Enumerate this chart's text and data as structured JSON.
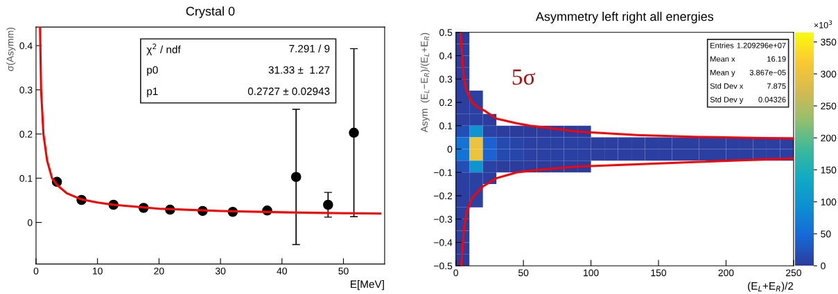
{
  "chart_data": [
    {
      "type": "scatter",
      "title": "Crystal 0",
      "xlabel": "E[MeV]",
      "ylabel": "σ(Asymm)",
      "xlim": [
        0,
        56.7
      ],
      "xticks": [
        0,
        10,
        20,
        30,
        40,
        50
      ],
      "ylim": [
        -0.094,
        0.442
      ],
      "yticks": [
        0,
        0.1,
        0.2,
        0.3,
        0.4
      ],
      "grid": false,
      "series": [
        {
          "type": "scatter",
          "color": "#000000",
          "marker": "circle",
          "x": [
            3.4,
            7.4,
            12.6,
            17.5,
            21.8,
            27.1,
            32.0,
            37.6,
            42.3,
            47.5,
            51.7
          ],
          "values": [
            0.092,
            0.051,
            0.04,
            0.033,
            0.029,
            0.026,
            0.024,
            0.027,
            0.103,
            0.04,
            0.203
          ],
          "errors": [
            null,
            null,
            null,
            null,
            null,
            null,
            null,
            null,
            0.153,
            0.028,
            0.19
          ]
        },
        {
          "type": "line",
          "color": "#ff0000",
          "line_style": "solid",
          "x": [
            0.65,
            0.82,
            1.2,
            1.8,
            2.6,
            3.4,
            5,
            7.4,
            10,
            12.6,
            20,
            30,
            40,
            50,
            56
          ],
          "values": [
            0.44,
            0.3,
            0.2,
            0.14,
            0.1,
            0.085,
            0.066,
            0.052,
            0.045,
            0.04,
            0.031,
            0.026,
            0.023,
            0.021,
            0.02
          ]
        }
      ],
      "annotations": [
        "χ$^{2}$ / ndf",
        "7.291 / 9",
        "p0",
        "31.33 ±  1.27",
        "p1",
        "0.2727 ± 0.02943"
      ]
    },
    {
      "type": "heatmap",
      "title": "Asymmetry left right all energies",
      "xlabel": "(E$_{L}$+E$_{R}$)/2",
      "ylabel": "Asym  (E$_{L}$−E$_{R}$)/(E$_{L}$+E$_{R}$)",
      "xlim": [
        0,
        250
      ],
      "xticks": [
        0,
        50,
        100,
        150,
        200,
        250
      ],
      "ylim": [
        -0.5,
        0.5
      ],
      "yticks": [
        {
          "value": -0.5,
          "label": "−0.5"
        },
        {
          "value": -0.4,
          "label": "−0.4"
        },
        {
          "value": -0.3,
          "label": "−0.3"
        },
        {
          "value": -0.2,
          "label": "−0.2"
        },
        {
          "value": -0.1,
          "label": "−0.1"
        },
        0,
        0.1,
        0.2,
        0.3,
        0.4,
        0.5
      ],
      "x": [
        5,
        15,
        25,
        35,
        45,
        55,
        65,
        75,
        85,
        95,
        105,
        115,
        125,
        135,
        145,
        155,
        165,
        175,
        185,
        195,
        205,
        215,
        225,
        235,
        245
      ],
      "clim": [
        0,
        365
      ],
      "cticks": [
        0,
        50,
        100,
        150,
        200,
        250,
        300,
        350
      ],
      "clabel": "×10$^{3}$",
      "cells": [
        [
          1,
          null,
          null,
          null,
          null,
          null,
          null,
          null,
          null,
          null,
          null,
          null,
          null,
          null,
          null,
          null,
          null,
          null,
          null,
          null,
          null,
          null,
          null,
          null,
          null
        ],
        [
          3,
          null,
          null,
          null,
          null,
          null,
          null,
          null,
          null,
          null,
          null,
          null,
          null,
          null,
          null,
          null,
          null,
          null,
          null,
          null,
          null,
          null,
          null,
          null,
          null
        ],
        [
          3,
          null,
          null,
          null,
          null,
          null,
          null,
          null,
          null,
          null,
          null,
          null,
          null,
          null,
          null,
          null,
          null,
          null,
          null,
          null,
          null,
          null,
          null,
          null,
          null
        ],
        [
          3,
          null,
          null,
          null,
          null,
          null,
          null,
          null,
          null,
          null,
          null,
          null,
          null,
          null,
          null,
          null,
          null,
          null,
          null,
          null,
          null,
          null,
          null,
          null,
          null
        ],
        [
          3,
          null,
          null,
          null,
          null,
          null,
          null,
          null,
          null,
          null,
          null,
          null,
          null,
          null,
          null,
          null,
          null,
          null,
          null,
          null,
          null,
          null,
          null,
          null,
          null
        ],
        [
          3,
          5,
          null,
          null,
          null,
          null,
          null,
          null,
          null,
          null,
          null,
          null,
          null,
          null,
          null,
          null,
          null,
          null,
          null,
          null,
          null,
          null,
          null,
          null,
          null
        ],
        [
          3,
          5,
          null,
          null,
          null,
          null,
          null,
          null,
          null,
          null,
          null,
          null,
          null,
          null,
          null,
          null,
          null,
          null,
          null,
          null,
          null,
          null,
          null,
          null,
          null
        ],
        [
          3,
          5,
          2,
          null,
          null,
          null,
          null,
          null,
          null,
          null,
          null,
          null,
          null,
          null,
          null,
          null,
          null,
          null,
          null,
          null,
          null,
          null,
          null,
          null,
          null
        ],
        [
          20,
          100,
          8,
          2,
          1,
          1,
          1,
          1,
          1,
          1,
          null,
          null,
          null,
          null,
          null,
          null,
          null,
          null,
          null,
          null,
          null,
          null,
          null,
          null,
          null
        ],
        [
          60,
          300,
          40,
          15,
          10,
          5,
          5,
          5,
          5,
          5,
          3,
          3,
          3,
          3,
          3,
          3,
          3,
          3,
          3,
          3,
          3,
          3,
          3,
          3,
          3
        ],
        [
          60,
          300,
          40,
          15,
          10,
          5,
          5,
          5,
          5,
          5,
          3,
          3,
          3,
          3,
          3,
          3,
          3,
          3,
          3,
          3,
          3,
          3,
          3,
          3,
          3
        ],
        [
          20,
          100,
          8,
          2,
          1,
          1,
          1,
          1,
          1,
          1,
          null,
          null,
          null,
          null,
          null,
          null,
          null,
          null,
          null,
          null,
          null,
          null,
          null,
          null,
          null
        ],
        [
          3,
          5,
          2,
          null,
          null,
          null,
          null,
          null,
          null,
          null,
          null,
          null,
          null,
          null,
          null,
          null,
          null,
          null,
          null,
          null,
          null,
          null,
          null,
          null,
          null
        ],
        [
          3,
          5,
          null,
          null,
          null,
          null,
          null,
          null,
          null,
          null,
          null,
          null,
          null,
          null,
          null,
          null,
          null,
          null,
          null,
          null,
          null,
          null,
          null,
          null,
          null
        ],
        [
          3,
          5,
          null,
          null,
          null,
          null,
          null,
          null,
          null,
          null,
          null,
          null,
          null,
          null,
          null,
          null,
          null,
          null,
          null,
          null,
          null,
          null,
          null,
          null,
          null
        ],
        [
          3,
          null,
          null,
          null,
          null,
          null,
          null,
          null,
          null,
          null,
          null,
          null,
          null,
          null,
          null,
          null,
          null,
          null,
          null,
          null,
          null,
          null,
          null,
          null,
          null
        ],
        [
          3,
          null,
          null,
          null,
          null,
          null,
          null,
          null,
          null,
          null,
          null,
          null,
          null,
          null,
          null,
          null,
          null,
          null,
          null,
          null,
          null,
          null,
          null,
          null,
          null
        ],
        [
          3,
          null,
          null,
          null,
          null,
          null,
          null,
          null,
          null,
          null,
          null,
          null,
          null,
          null,
          null,
          null,
          null,
          null,
          null,
          null,
          null,
          null,
          null,
          null,
          null
        ],
        [
          3,
          null,
          null,
          null,
          null,
          null,
          null,
          null,
          null,
          null,
          null,
          null,
          null,
          null,
          null,
          null,
          null,
          null,
          null,
          null,
          null,
          null,
          null,
          null,
          null
        ],
        [
          1,
          null,
          null,
          null,
          null,
          null,
          null,
          null,
          null,
          null,
          null,
          null,
          null,
          null,
          null,
          null,
          null,
          null,
          null,
          null,
          null,
          null,
          null,
          null,
          null
        ]
      ],
      "series": [
        {
          "type": "line",
          "color": "#ff0000",
          "line_style": "solid",
          "x": [
            3.5,
            4,
            5,
            6,
            8,
            12,
            16,
            21,
            30,
            45,
            55,
            90,
            134,
            180,
            250
          ],
          "values": [
            0.5,
            0.45,
            0.37,
            0.3,
            0.25,
            0.2,
            0.18,
            0.165,
            0.13,
            0.11,
            0.1,
            0.075,
            0.06,
            0.052,
            0.045
          ]
        },
        {
          "type": "line",
          "color": "#ff0000",
          "line_style": "solid",
          "x": [
            4,
            5,
            6,
            8,
            12,
            20,
            30,
            45,
            60,
            90,
            134,
            180,
            250
          ],
          "values": [
            -0.5,
            -0.42,
            -0.34,
            -0.27,
            -0.21,
            -0.16,
            -0.125,
            -0.1,
            -0.09,
            -0.075,
            -0.065,
            -0.055,
            -0.04
          ]
        }
      ],
      "annotations": [
        "Entries",
        "1.209296e+07",
        "Mean x",
        "16.19",
        "Mean y",
        "3.867e−05",
        "Std Dev x",
        "7.875",
        "Std Dev y",
        "0.04326",
        "5σ"
      ]
    }
  ]
}
